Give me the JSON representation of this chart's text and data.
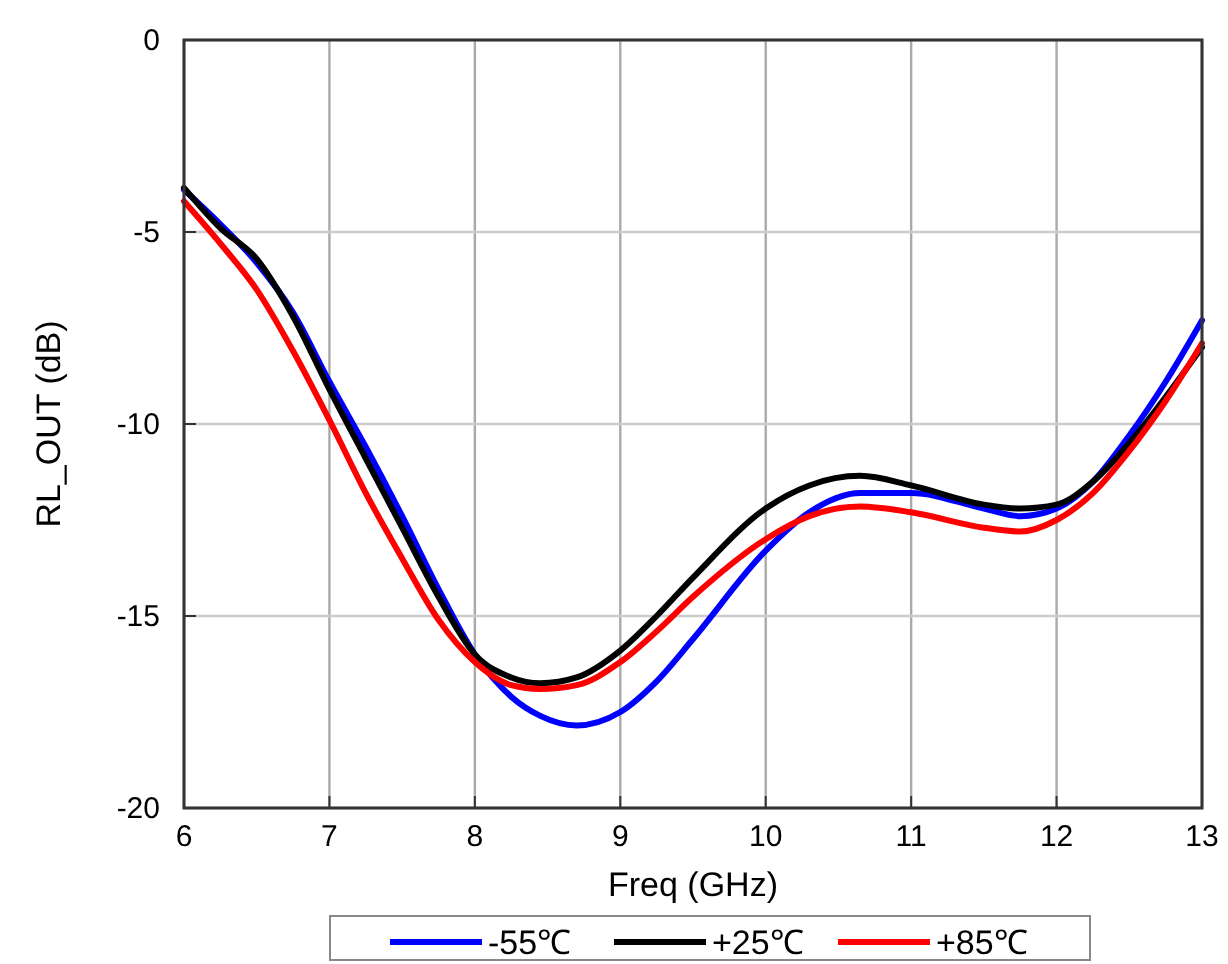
{
  "chart_data": {
    "type": "line",
    "xlabel": "Freq (GHz)",
    "ylabel": "RL_OUT (dB)",
    "x": [
      6,
      6.25,
      6.5,
      6.75,
      7,
      7.25,
      7.5,
      7.75,
      8,
      8.25,
      8.45,
      8.7,
      9,
      9.25,
      9.5,
      10,
      10.3,
      10.65,
      11,
      11.5,
      11.75,
      12,
      12.25,
      12.5,
      12.75,
      13
    ],
    "series": [
      {
        "name": "-55℃",
        "color": "#0000ff",
        "values": [
          -3.9,
          -4.8,
          -5.8,
          -7.1,
          -8.9,
          -10.6,
          -12.4,
          -14.3,
          -16.0,
          -17.1,
          -17.6,
          -17.85,
          -17.5,
          -16.7,
          -15.6,
          -13.3,
          -12.3,
          -11.8,
          -11.8,
          -12.2,
          -12.4,
          -12.2,
          -11.5,
          -10.3,
          -8.9,
          -7.3
        ]
      },
      {
        "name": "+25℃",
        "color": "#000000",
        "values": [
          -3.85,
          -4.9,
          -5.7,
          -7.2,
          -9.1,
          -10.9,
          -12.7,
          -14.5,
          -16.0,
          -16.6,
          -16.75,
          -16.6,
          -15.9,
          -15.0,
          -14.0,
          -12.2,
          -11.6,
          -11.35,
          -11.6,
          -12.1,
          -12.2,
          -12.1,
          -11.5,
          -10.5,
          -9.3,
          -8.0
        ]
      },
      {
        "name": "+85℃",
        "color": "#ff0000",
        "values": [
          -4.2,
          -5.3,
          -6.5,
          -8.1,
          -9.9,
          -11.8,
          -13.5,
          -15.1,
          -16.2,
          -16.8,
          -16.9,
          -16.8,
          -16.2,
          -15.4,
          -14.5,
          -13.0,
          -12.4,
          -12.15,
          -12.3,
          -12.7,
          -12.8,
          -12.5,
          -11.8,
          -10.7,
          -9.4,
          -7.9
        ]
      }
    ],
    "xlim": [
      6,
      13
    ],
    "xticks": [
      6,
      7,
      8,
      9,
      10,
      11,
      12,
      13
    ],
    "ylim": [
      -20,
      0
    ],
    "yticks": [
      -20,
      -15,
      -10,
      -5,
      0
    ],
    "grid": true,
    "legend": "bottom",
    "line_style": "solid"
  }
}
